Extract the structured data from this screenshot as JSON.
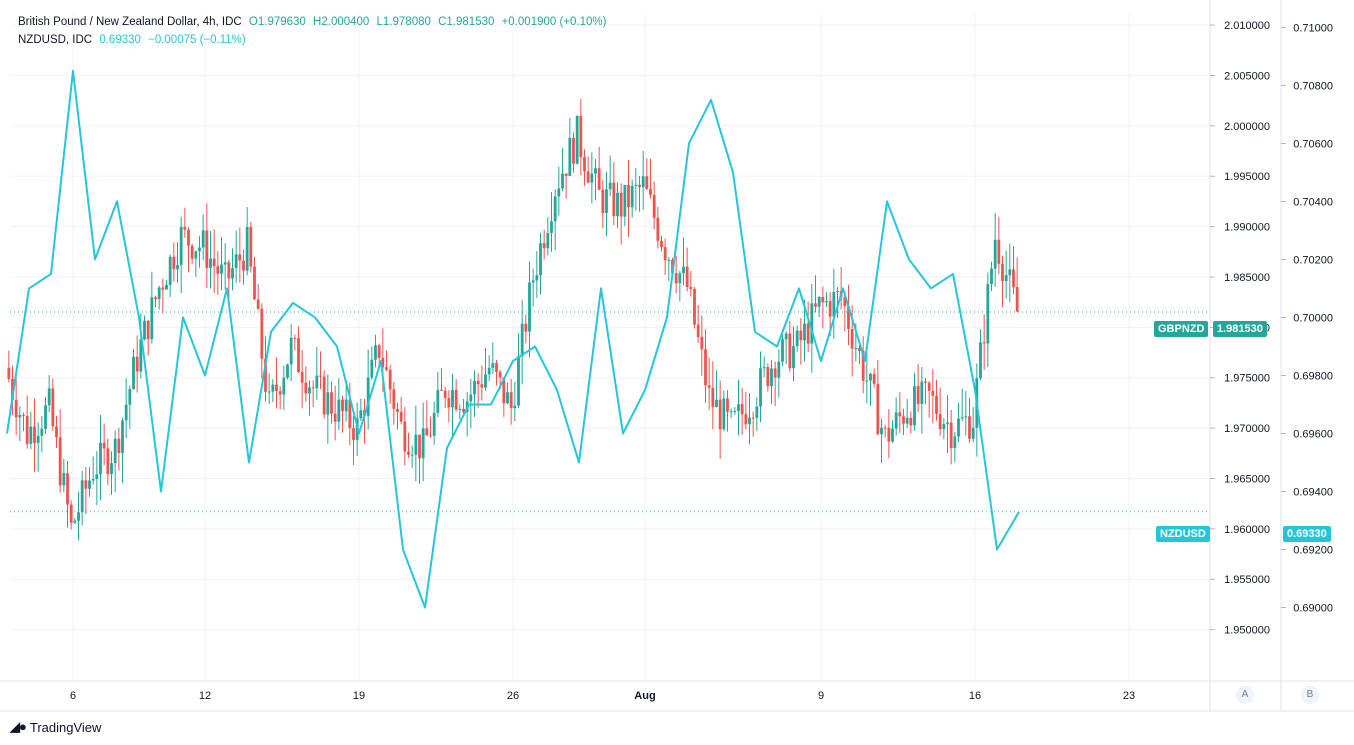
{
  "legend": {
    "gbp": {
      "name": "British Pound / New Zealand Dollar, 4h, IDC",
      "open": "O1.979630",
      "high": "H2.000400",
      "low": "L1.978080",
      "close": "C1.981530",
      "change": "+0.001900 (+0.10%)"
    },
    "nzd": {
      "name": "NZDUSD, IDC",
      "value": "0.69330",
      "change": "−0.00075 (−0.11%)"
    }
  },
  "tags": {
    "gbp_label": "GBPNZD",
    "gbp_price": "1.981530",
    "nzd_label": "NZDUSD",
    "nzd_price": "0.69330"
  },
  "scale_buttons": {
    "a": "A",
    "b": "B"
  },
  "branding": {
    "name": "TradingView"
  },
  "colors": {
    "up": "#26a69a",
    "down": "#ef5350",
    "nzd_line": "#26c6da",
    "grid": "#f0f3fa",
    "text": "#131722"
  },
  "chart_data": {
    "type": "line",
    "title": "British Pound / New Zealand Dollar, 4h, IDC",
    "x_ticks": [
      "6",
      "12",
      "19",
      "26",
      "Aug",
      "9",
      "16",
      "23"
    ],
    "y_left_ticks": [
      "2.010000",
      "2.005000",
      "2.000000",
      "1.995000",
      "1.990000",
      "1.985000",
      "1.980000",
      "1.975000",
      "1.970000",
      "1.965000",
      "1.960000",
      "1.955000",
      "1.950000"
    ],
    "y_right_ticks": [
      "0.71000",
      "0.70800",
      "0.70600",
      "0.70400",
      "0.70200",
      "0.70000",
      "0.69800",
      "0.69600",
      "0.69400",
      "0.69200",
      "0.69000"
    ],
    "ylim_gbp": [
      1.945,
      2.0115
    ],
    "ylim_nzd": [
      0.6875,
      0.7106
    ],
    "grid": true,
    "gbp_close_path": [
      [
        "Jul 3",
        1.976
      ],
      [
        "Jul 4",
        1.9695
      ],
      [
        "Jul 5",
        1.972
      ],
      [
        "Jul 6",
        1.96
      ],
      [
        "Jul 7",
        1.966
      ],
      [
        "Jul 8",
        1.968
      ],
      [
        "Jul 9",
        1.977
      ],
      [
        "Jul 10",
        1.984
      ],
      [
        "Jul 11",
        1.989
      ],
      [
        "Jul 12",
        1.988
      ],
      [
        "Jul 13",
        1.9845
      ],
      [
        "Jul 14",
        1.988
      ],
      [
        "Jul 15",
        1.972
      ],
      [
        "Jul 16",
        1.978
      ],
      [
        "Jul 17",
        1.974
      ],
      [
        "Jul 18",
        1.972
      ],
      [
        "Jul 19",
        1.97
      ],
      [
        "Jul 20",
        1.978
      ],
      [
        "Jul 21",
        1.97
      ],
      [
        "Jul 22",
        1.968
      ],
      [
        "Jul 23",
        1.974
      ],
      [
        "Jul 24",
        1.973
      ],
      [
        "Jul 25",
        1.976
      ],
      [
        "Jul 26",
        1.972
      ],
      [
        "Jul 27",
        1.985
      ],
      [
        "Jul 28",
        1.994
      ],
      [
        "Jul 29",
        1.999
      ],
      [
        "Jul 30",
        1.993
      ],
      [
        "Jul 31",
        1.992
      ],
      [
        "Aug 1",
        1.994
      ],
      [
        "Aug 2",
        1.988
      ],
      [
        "Aug 3",
        1.984
      ],
      [
        "Aug 4",
        1.973
      ],
      [
        "Aug 5",
        1.97
      ],
      [
        "Aug 6",
        1.973
      ],
      [
        "Aug 7",
        1.977
      ],
      [
        "Aug 8",
        1.978
      ],
      [
        "Aug 9",
        1.982
      ],
      [
        "Aug 10",
        1.983
      ],
      [
        "Aug 11",
        1.976
      ],
      [
        "Aug 12",
        1.969
      ],
      [
        "Aug 13",
        1.972
      ],
      [
        "Aug 14",
        1.973
      ],
      [
        "Aug 15",
        1.97
      ],
      [
        "Aug 16",
        1.971
      ],
      [
        "Aug 17",
        1.989
      ],
      [
        "Aug 18",
        1.98153
      ]
    ],
    "series": [
      {
        "name": "NZDUSD, IDC",
        "x": [
          "Jul 3",
          "Jul 4",
          "Jul 5",
          "Jul 6",
          "Jul 7",
          "Jul 8",
          "Jul 9",
          "Jul 10",
          "Jul 11",
          "Jul 12",
          "Jul 13",
          "Jul 14",
          "Jul 15",
          "Jul 16",
          "Jul 17",
          "Jul 18",
          "Jul 19",
          "Jul 20",
          "Jul 21",
          "Jul 22",
          "Jul 23",
          "Jul 24",
          "Jul 25",
          "Jul 26",
          "Jul 27",
          "Jul 28",
          "Jul 29",
          "Jul 30",
          "Jul 31",
          "Aug 1",
          "Aug 2",
          "Aug 3",
          "Aug 4",
          "Aug 5",
          "Aug 6",
          "Aug 7",
          "Aug 8",
          "Aug 9",
          "Aug 10",
          "Aug 11",
          "Aug 12",
          "Aug 13",
          "Aug 14",
          "Aug 15",
          "Aug 16",
          "Aug 17",
          "Aug 18"
        ],
        "values": [
          0.696,
          0.701,
          0.7015,
          0.7085,
          0.702,
          0.704,
          0.7,
          0.694,
          0.7,
          0.698,
          0.701,
          0.695,
          0.6995,
          0.7005,
          0.7,
          0.699,
          0.696,
          0.6985,
          0.692,
          0.69,
          0.6955,
          0.697,
          0.697,
          0.6985,
          0.699,
          0.6975,
          0.695,
          0.701,
          0.696,
          0.6975,
          0.7,
          0.706,
          0.7075,
          0.705,
          0.6995,
          0.699,
          0.701,
          0.6985,
          0.701,
          0.6985,
          0.704,
          0.702,
          0.701,
          0.7015,
          0.6975,
          0.692,
          0.6933
        ]
      }
    ]
  }
}
